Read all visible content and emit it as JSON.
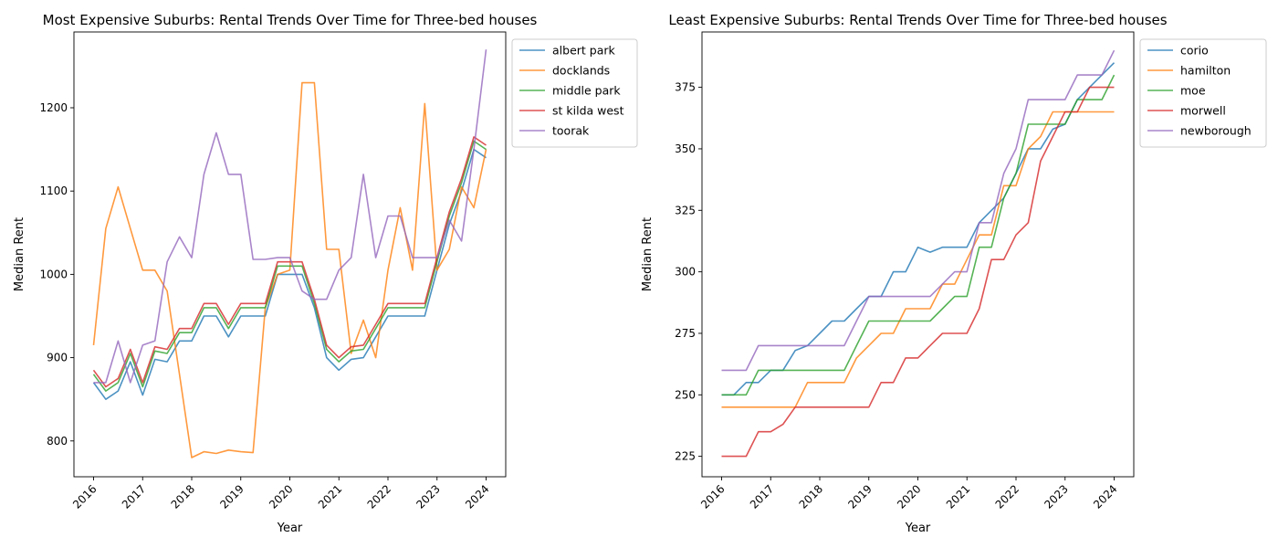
{
  "chart_data": [
    {
      "type": "line",
      "title": "Most Expensive Suburbs: Rental Trends Over Time for Three-bed houses",
      "xlabel": "Year",
      "ylabel": "Median Rent",
      "xlim": [
        2015.6,
        2024.4
      ],
      "ylim": [
        757,
        1291
      ],
      "xticks": [
        2016,
        2017,
        2018,
        2019,
        2020,
        2021,
        2022,
        2023,
        2024
      ],
      "xtick_labels": [
        "2016",
        "2017",
        "2018",
        "2019",
        "2020",
        "2021",
        "2022",
        "2023",
        "2024"
      ],
      "yticks": [
        800,
        900,
        1000,
        1100,
        1200
      ],
      "ytick_labels": [
        "800",
        "900",
        "1000",
        "1100",
        "1200"
      ],
      "grid": false,
      "legend_position": "outside-upper-right",
      "x": [
        2016.0,
        2016.25,
        2016.5,
        2016.75,
        2017.0,
        2017.25,
        2017.5,
        2017.75,
        2018.0,
        2018.25,
        2018.5,
        2018.75,
        2019.0,
        2019.25,
        2019.5,
        2019.75,
        2020.0,
        2020.25,
        2020.5,
        2020.75,
        2021.0,
        2021.25,
        2021.5,
        2021.75,
        2022.0,
        2022.25,
        2022.5,
        2022.75,
        2023.0,
        2023.25,
        2023.5,
        2023.75,
        2024.0
      ],
      "series": [
        {
          "name": "albert park",
          "color": "#1f77b4",
          "values": [
            870,
            850,
            860,
            895,
            855,
            898,
            895,
            920,
            920,
            950,
            950,
            925,
            950,
            950,
            950,
            1000,
            1000,
            1000,
            960,
            900,
            885,
            898,
            900,
            925,
            950,
            950,
            950,
            950,
            1005,
            1060,
            1100,
            1150,
            1140
          ]
        },
        {
          "name": "docklands",
          "color": "#ff7f0e",
          "values": [
            915,
            1055,
            1105,
            1055,
            1005,
            1005,
            980,
            880,
            780,
            787,
            785,
            789,
            787,
            786,
            960,
            1000,
            1005,
            1230,
            1230,
            1030,
            1030,
            905,
            945,
            900,
            1005,
            1080,
            1005,
            1205,
            1005,
            1030,
            1105,
            1080,
            1150
          ]
        },
        {
          "name": "middle park",
          "color": "#2ca02c",
          "values": [
            880,
            860,
            870,
            905,
            865,
            908,
            905,
            930,
            930,
            960,
            960,
            935,
            960,
            960,
            960,
            1010,
            1010,
            1010,
            965,
            910,
            895,
            908,
            910,
            935,
            960,
            960,
            960,
            960,
            1015,
            1070,
            1110,
            1160,
            1150
          ]
        },
        {
          "name": "st kilda west",
          "color": "#d62728",
          "values": [
            885,
            865,
            875,
            910,
            870,
            913,
            910,
            935,
            935,
            965,
            965,
            940,
            965,
            965,
            965,
            1015,
            1015,
            1015,
            970,
            915,
            900,
            913,
            915,
            940,
            965,
            965,
            965,
            965,
            1020,
            1075,
            1115,
            1165,
            1155
          ]
        },
        {
          "name": "toorak",
          "color": "#9467bd",
          "values": [
            870,
            870,
            920,
            870,
            915,
            920,
            1015,
            1045,
            1020,
            1120,
            1170,
            1120,
            1120,
            1018,
            1018,
            1020,
            1020,
            980,
            970,
            970,
            1005,
            1020,
            1120,
            1020,
            1070,
            1070,
            1020,
            1020,
            1020,
            1065,
            1040,
            1150,
            1270
          ]
        }
      ]
    },
    {
      "type": "line",
      "title": "Least Expensive Suburbs: Rental Trends Over Time for Three-bed houses",
      "xlabel": "Year",
      "ylabel": "Median Rent",
      "xlim": [
        2015.6,
        2024.4
      ],
      "ylim": [
        216.7,
        397.5
      ],
      "xticks": [
        2016,
        2017,
        2018,
        2019,
        2020,
        2021,
        2022,
        2023,
        2024
      ],
      "xtick_labels": [
        "2016",
        "2017",
        "2018",
        "2019",
        "2020",
        "2021",
        "2022",
        "2023",
        "2024"
      ],
      "yticks": [
        225,
        250,
        275,
        300,
        325,
        350,
        375
      ],
      "ytick_labels": [
        "225",
        "250",
        "275",
        "300",
        "325",
        "350",
        "375"
      ],
      "grid": false,
      "legend_position": "outside-upper-right",
      "x": [
        2016.0,
        2016.25,
        2016.5,
        2016.75,
        2017.0,
        2017.25,
        2017.5,
        2017.75,
        2018.0,
        2018.25,
        2018.5,
        2018.75,
        2019.0,
        2019.25,
        2019.5,
        2019.75,
        2020.0,
        2020.25,
        2020.5,
        2020.75,
        2021.0,
        2021.25,
        2021.5,
        2021.75,
        2022.0,
        2022.25,
        2022.5,
        2022.75,
        2023.0,
        2023.25,
        2023.5,
        2023.75,
        2024.0
      ],
      "series": [
        {
          "name": "corio",
          "color": "#1f77b4",
          "values": [
            250,
            250,
            255,
            255,
            260,
            260,
            268,
            270,
            275,
            280,
            280,
            285,
            290,
            290,
            300,
            300,
            310,
            308,
            310,
            310,
            310,
            320,
            325,
            330,
            340,
            350,
            350,
            358,
            360,
            370,
            375,
            380,
            385
          ]
        },
        {
          "name": "hamilton",
          "color": "#ff7f0e",
          "values": [
            245,
            245,
            245,
            245,
            245,
            245,
            245,
            255,
            255,
            255,
            255,
            265,
            270,
            275,
            275,
            285,
            285,
            285,
            295,
            295,
            305,
            315,
            315,
            335,
            335,
            350,
            355,
            365,
            365,
            365,
            365,
            365,
            365
          ]
        },
        {
          "name": "moe",
          "color": "#2ca02c",
          "values": [
            250,
            250,
            250,
            260,
            260,
            260,
            260,
            260,
            260,
            260,
            260,
            270,
            280,
            280,
            280,
            280,
            280,
            280,
            285,
            290,
            290,
            310,
            310,
            330,
            340,
            360,
            360,
            360,
            360,
            370,
            370,
            370,
            380
          ]
        },
        {
          "name": "morwell",
          "color": "#d62728",
          "values": [
            225,
            225,
            225,
            235,
            235,
            238,
            245,
            245,
            245,
            245,
            245,
            245,
            245,
            255,
            255,
            265,
            265,
            270,
            275,
            275,
            275,
            285,
            305,
            305,
            315,
            320,
            345,
            355,
            365,
            365,
            375,
            375,
            375
          ]
        },
        {
          "name": "newborough",
          "color": "#9467bd",
          "values": [
            260,
            260,
            260,
            270,
            270,
            270,
            270,
            270,
            270,
            270,
            270,
            280,
            290,
            290,
            290,
            290,
            290,
            290,
            295,
            300,
            300,
            320,
            320,
            340,
            350,
            370,
            370,
            370,
            370,
            380,
            380,
            380,
            390
          ]
        }
      ]
    }
  ]
}
